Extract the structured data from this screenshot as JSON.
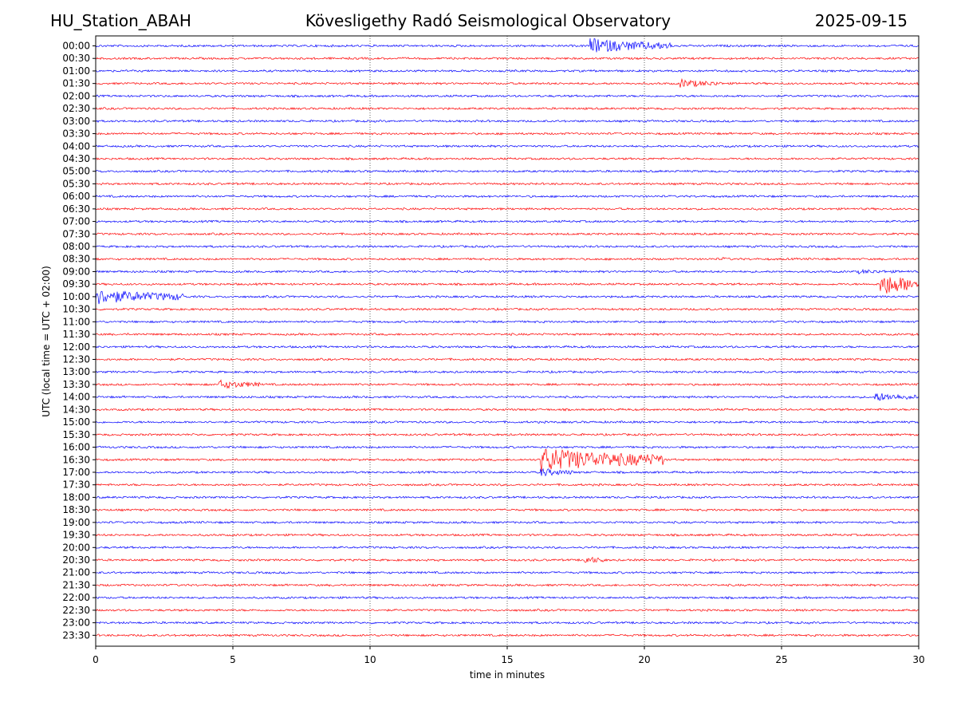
{
  "header": {
    "station": "HU_Station_ABAH",
    "observatory": "Kövesligethy Radó Seismological Observatory",
    "date": "2025-09-15"
  },
  "chart_data": {
    "type": "line",
    "xlabel": "time in minutes",
    "ylabel": "UTC (local time = UTC + 02:00)",
    "xlim": [
      0,
      30
    ],
    "x_ticks": [
      0,
      5,
      10,
      15,
      20,
      25,
      30
    ],
    "grid": "vertical dotted lines at x ticks",
    "colors": {
      "even_trace": "#0000ff",
      "odd_trace": "#ff0000"
    },
    "rows": [
      "00:00",
      "00:30",
      "01:00",
      "01:30",
      "02:00",
      "02:30",
      "03:00",
      "03:30",
      "04:00",
      "04:30",
      "05:00",
      "05:30",
      "06:00",
      "06:30",
      "07:00",
      "07:30",
      "08:00",
      "08:30",
      "09:00",
      "09:30",
      "10:00",
      "10:30",
      "11:00",
      "11:30",
      "12:00",
      "12:30",
      "13:00",
      "13:30",
      "14:00",
      "14:30",
      "15:00",
      "15:30",
      "16:00",
      "16:30",
      "17:00",
      "17:30",
      "18:00",
      "18:30",
      "19:00",
      "19:30",
      "20:00",
      "20:30",
      "21:00",
      "21:30",
      "22:00",
      "22:30",
      "23:00",
      "23:30"
    ],
    "events": [
      {
        "row": "00:00",
        "start_min": 18.0,
        "duration_min": 3.0,
        "amplitude": "large"
      },
      {
        "row": "01:30",
        "start_min": 21.3,
        "duration_min": 1.5,
        "amplitude": "medium"
      },
      {
        "row": "08:30",
        "start_min": 22.8,
        "duration_min": 0.4,
        "amplitude": "small"
      },
      {
        "row": "09:00",
        "start_min": 27.8,
        "duration_min": 2.2,
        "amplitude": "small"
      },
      {
        "row": "09:30",
        "start_min": 28.6,
        "duration_min": 1.4,
        "amplitude": "very large"
      },
      {
        "row": "10:00",
        "start_min": 0.0,
        "duration_min": 3.2,
        "amplitude": "large"
      },
      {
        "row": "13:30",
        "start_min": 4.5,
        "duration_min": 1.5,
        "amplitude": "medium"
      },
      {
        "row": "14:00",
        "start_min": 28.4,
        "duration_min": 1.6,
        "amplitude": "medium"
      },
      {
        "row": "16:30",
        "start_min": 16.2,
        "duration_min": 4.5,
        "amplitude": "very large"
      },
      {
        "row": "17:00",
        "start_min": 16.2,
        "duration_min": 1.2,
        "amplitude": "medium"
      },
      {
        "row": "20:30",
        "start_min": 17.8,
        "duration_min": 0.8,
        "amplitude": "medium"
      }
    ]
  }
}
